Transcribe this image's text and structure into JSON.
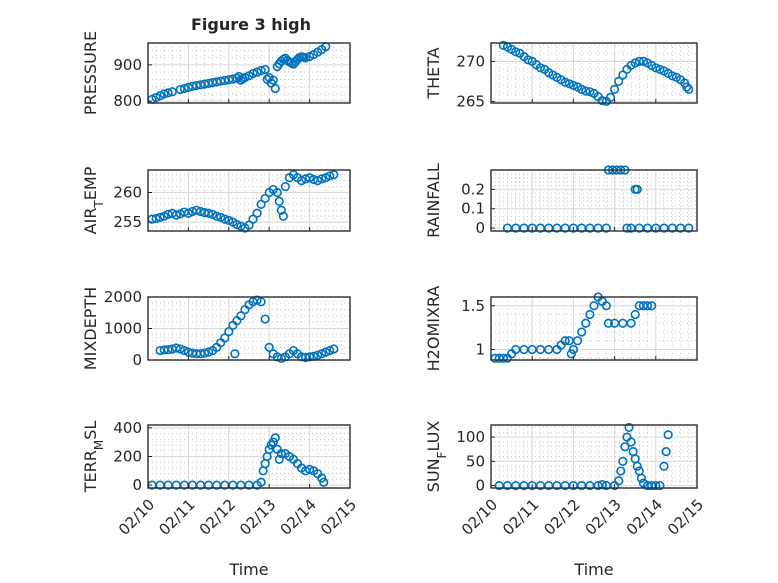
{
  "figure": {
    "title": "Figure 3 high",
    "marker_color": "#0072bd"
  },
  "chart_data": [
    {
      "type": "scatter",
      "ylabel": "PRESSURE",
      "xlim": [
        0,
        5
      ],
      "ylim": [
        795,
        960
      ],
      "yticks": [
        800,
        900
      ],
      "xtick_labels": [],
      "grid": true,
      "points": [
        [
          0.1,
          805
        ],
        [
          0.2,
          810
        ],
        [
          0.3,
          815
        ],
        [
          0.4,
          820
        ],
        [
          0.5,
          823
        ],
        [
          0.6,
          826
        ],
        [
          0.8,
          832
        ],
        [
          0.9,
          835
        ],
        [
          1.0,
          838
        ],
        [
          1.1,
          841
        ],
        [
          1.2,
          843
        ],
        [
          1.3,
          845
        ],
        [
          1.4,
          847
        ],
        [
          1.5,
          849
        ],
        [
          1.6,
          851
        ],
        [
          1.7,
          853
        ],
        [
          1.8,
          855
        ],
        [
          1.9,
          857
        ],
        [
          2.0,
          859
        ],
        [
          2.1,
          861
        ],
        [
          2.2,
          863
        ],
        [
          2.25,
          868
        ],
        [
          2.3,
          858
        ],
        [
          2.35,
          862
        ],
        [
          2.4,
          865
        ],
        [
          2.5,
          870
        ],
        [
          2.6,
          876
        ],
        [
          2.7,
          880
        ],
        [
          2.8,
          884
        ],
        [
          2.9,
          887
        ],
        [
          2.95,
          860
        ],
        [
          3.0,
          865
        ],
        [
          3.05,
          850
        ],
        [
          3.1,
          858
        ],
        [
          3.15,
          835
        ],
        [
          3.2,
          895
        ],
        [
          3.25,
          903
        ],
        [
          3.3,
          910
        ],
        [
          3.35,
          915
        ],
        [
          3.4,
          918
        ],
        [
          3.45,
          912
        ],
        [
          3.5,
          908
        ],
        [
          3.55,
          905
        ],
        [
          3.6,
          902
        ],
        [
          3.65,
          908
        ],
        [
          3.7,
          915
        ],
        [
          3.75,
          920
        ],
        [
          3.8,
          922
        ],
        [
          3.85,
          921
        ],
        [
          3.9,
          919
        ],
        [
          4.0,
          923
        ],
        [
          4.1,
          928
        ],
        [
          4.2,
          935
        ],
        [
          4.3,
          942
        ],
        [
          4.4,
          950
        ]
      ]
    },
    {
      "type": "scatter",
      "ylabel": "THETA",
      "xlim": [
        0,
        5
      ],
      "ylim": [
        264.8,
        272.3
      ],
      "yticks": [
        265,
        270
      ],
      "xtick_labels": [],
      "grid": true,
      "points": [
        [
          0.3,
          272
        ],
        [
          0.4,
          271.8
        ],
        [
          0.5,
          271.5
        ],
        [
          0.6,
          271.2
        ],
        [
          0.7,
          271
        ],
        [
          0.8,
          270.6
        ],
        [
          0.9,
          270.2
        ],
        [
          1.0,
          270
        ],
        [
          1.1,
          269.6
        ],
        [
          1.2,
          269.2
        ],
        [
          1.3,
          269
        ],
        [
          1.4,
          268.6
        ],
        [
          1.5,
          268.3
        ],
        [
          1.6,
          268
        ],
        [
          1.7,
          267.7
        ],
        [
          1.8,
          267.4
        ],
        [
          1.9,
          267.2
        ],
        [
          2.0,
          267
        ],
        [
          2.1,
          266.8
        ],
        [
          2.2,
          266.5
        ],
        [
          2.3,
          266.3
        ],
        [
          2.4,
          266.2
        ],
        [
          2.5,
          266
        ],
        [
          2.6,
          265.6
        ],
        [
          2.7,
          265.1
        ],
        [
          2.8,
          265
        ],
        [
          2.9,
          265.5
        ],
        [
          3.0,
          266.5
        ],
        [
          3.1,
          267.5
        ],
        [
          3.2,
          268.3
        ],
        [
          3.3,
          269
        ],
        [
          3.4,
          269.5
        ],
        [
          3.5,
          269.8
        ],
        [
          3.6,
          270
        ],
        [
          3.7,
          270
        ],
        [
          3.8,
          269.8
        ],
        [
          3.9,
          269.5
        ],
        [
          4.0,
          269.2
        ],
        [
          4.1,
          269
        ],
        [
          4.2,
          268.8
        ],
        [
          4.3,
          268.5
        ],
        [
          4.4,
          268.2
        ],
        [
          4.5,
          268
        ],
        [
          4.6,
          267.7
        ],
        [
          4.7,
          267.3
        ],
        [
          4.75,
          266.8
        ],
        [
          4.8,
          266.5
        ]
      ]
    },
    {
      "type": "scatter",
      "ylabel": "AIR_TEMP",
      "xlim": [
        0,
        5
      ],
      "ylim": [
        253.5,
        263.8
      ],
      "yticks": [
        255,
        260
      ],
      "xtick_labels": [],
      "grid": true,
      "points": [
        [
          0.1,
          255.5
        ],
        [
          0.2,
          255.6
        ],
        [
          0.3,
          255.8
        ],
        [
          0.4,
          256
        ],
        [
          0.5,
          256.3
        ],
        [
          0.6,
          256.5
        ],
        [
          0.7,
          256.2
        ],
        [
          0.8,
          256.4
        ],
        [
          0.9,
          256.7
        ],
        [
          1.0,
          256.5
        ],
        [
          1.1,
          256.8
        ],
        [
          1.2,
          257
        ],
        [
          1.3,
          256.8
        ],
        [
          1.4,
          256.6
        ],
        [
          1.5,
          256.5
        ],
        [
          1.6,
          256.3
        ],
        [
          1.7,
          256
        ],
        [
          1.8,
          255.8
        ],
        [
          1.9,
          255.5
        ],
        [
          2.0,
          255.3
        ],
        [
          2.1,
          255
        ],
        [
          2.2,
          254.6
        ],
        [
          2.3,
          254.3
        ],
        [
          2.4,
          254
        ],
        [
          2.5,
          254.5
        ],
        [
          2.6,
          255.5
        ],
        [
          2.7,
          256.5
        ],
        [
          2.8,
          258
        ],
        [
          2.9,
          259
        ],
        [
          3.0,
          260
        ],
        [
          3.1,
          260.5
        ],
        [
          3.2,
          260
        ],
        [
          3.25,
          258.5
        ],
        [
          3.3,
          257
        ],
        [
          3.35,
          256
        ],
        [
          3.4,
          261
        ],
        [
          3.5,
          262.5
        ],
        [
          3.6,
          263
        ],
        [
          3.7,
          262.5
        ],
        [
          3.8,
          262
        ],
        [
          3.9,
          262.3
        ],
        [
          4.0,
          262.5
        ],
        [
          4.1,
          262.2
        ],
        [
          4.2,
          262
        ],
        [
          4.3,
          262.3
        ],
        [
          4.4,
          262.5
        ],
        [
          4.5,
          262.8
        ],
        [
          4.6,
          263
        ]
      ]
    },
    {
      "type": "scatter",
      "ylabel": "RAINFALL",
      "xlim": [
        0,
        5
      ],
      "ylim": [
        -0.015,
        0.3
      ],
      "yticks": [
        0,
        0.1,
        0.2
      ],
      "xtick_labels": [],
      "grid": true,
      "points": [
        [
          0.4,
          0
        ],
        [
          0.6,
          0
        ],
        [
          0.8,
          0
        ],
        [
          1.0,
          0
        ],
        [
          1.2,
          0
        ],
        [
          1.4,
          0
        ],
        [
          1.6,
          0
        ],
        [
          1.8,
          0
        ],
        [
          2.0,
          0
        ],
        [
          2.2,
          0
        ],
        [
          2.4,
          0
        ],
        [
          2.6,
          0
        ],
        [
          2.8,
          0
        ],
        [
          2.85,
          0.3
        ],
        [
          2.95,
          0.3
        ],
        [
          3.05,
          0.3
        ],
        [
          3.15,
          0.3
        ],
        [
          3.25,
          0.3
        ],
        [
          3.3,
          0
        ],
        [
          3.4,
          0
        ],
        [
          3.5,
          0.2
        ],
        [
          3.55,
          0.2
        ],
        [
          3.6,
          0
        ],
        [
          3.8,
          0
        ],
        [
          4.0,
          0
        ],
        [
          4.2,
          0
        ],
        [
          4.4,
          0
        ],
        [
          4.6,
          0
        ],
        [
          4.8,
          0
        ]
      ]
    },
    {
      "type": "scatter",
      "ylabel": "MIXDEPTH",
      "xlim": [
        0,
        5
      ],
      "ylim": [
        0,
        2000
      ],
      "yticks": [
        0,
        1000,
        2000
      ],
      "xtick_labels": [],
      "grid": true,
      "points": [
        [
          0.3,
          300
        ],
        [
          0.4,
          320
        ],
        [
          0.5,
          330
        ],
        [
          0.6,
          350
        ],
        [
          0.7,
          380
        ],
        [
          0.8,
          350
        ],
        [
          0.9,
          300
        ],
        [
          1.0,
          250
        ],
        [
          1.1,
          220
        ],
        [
          1.2,
          200
        ],
        [
          1.3,
          200
        ],
        [
          1.4,
          220
        ],
        [
          1.5,
          250
        ],
        [
          1.6,
          300
        ],
        [
          1.7,
          400
        ],
        [
          1.8,
          550
        ],
        [
          1.9,
          700
        ],
        [
          2.0,
          900
        ],
        [
          2.1,
          1100
        ],
        [
          2.15,
          200
        ],
        [
          2.2,
          1250
        ],
        [
          2.3,
          1400
        ],
        [
          2.4,
          1600
        ],
        [
          2.5,
          1750
        ],
        [
          2.6,
          1850
        ],
        [
          2.7,
          1900
        ],
        [
          2.8,
          1850
        ],
        [
          2.9,
          1300
        ],
        [
          3.0,
          400
        ],
        [
          3.1,
          200
        ],
        [
          3.2,
          100
        ],
        [
          3.3,
          50
        ],
        [
          3.4,
          100
        ],
        [
          3.5,
          200
        ],
        [
          3.6,
          300
        ],
        [
          3.7,
          200
        ],
        [
          3.8,
          100
        ],
        [
          3.9,
          80
        ],
        [
          4.0,
          100
        ],
        [
          4.1,
          120
        ],
        [
          4.2,
          150
        ],
        [
          4.3,
          200
        ],
        [
          4.4,
          250
        ],
        [
          4.5,
          300
        ],
        [
          4.6,
          350
        ]
      ]
    },
    {
      "type": "scatter",
      "ylabel": "H2OMIXRA",
      "xlim": [
        0,
        5
      ],
      "ylim": [
        0.88,
        1.6
      ],
      "yticks": [
        1,
        1.5
      ],
      "xtick_labels": [],
      "grid": true,
      "points": [
        [
          0.1,
          0.9
        ],
        [
          0.2,
          0.9
        ],
        [
          0.3,
          0.9
        ],
        [
          0.4,
          0.9
        ],
        [
          0.5,
          0.95
        ],
        [
          0.6,
          1.0
        ],
        [
          0.8,
          1.0
        ],
        [
          1.0,
          1.0
        ],
        [
          1.2,
          1.0
        ],
        [
          1.4,
          1.0
        ],
        [
          1.6,
          1.0
        ],
        [
          1.7,
          1.05
        ],
        [
          1.8,
          1.1
        ],
        [
          1.9,
          1.1
        ],
        [
          1.95,
          0.95
        ],
        [
          2.0,
          1.0
        ],
        [
          2.1,
          1.1
        ],
        [
          2.2,
          1.2
        ],
        [
          2.3,
          1.3
        ],
        [
          2.4,
          1.4
        ],
        [
          2.5,
          1.5
        ],
        [
          2.6,
          1.6
        ],
        [
          2.7,
          1.55
        ],
        [
          2.8,
          1.5
        ],
        [
          2.85,
          1.3
        ],
        [
          3.0,
          1.3
        ],
        [
          3.2,
          1.3
        ],
        [
          3.4,
          1.3
        ],
        [
          3.5,
          1.4
        ],
        [
          3.6,
          1.5
        ],
        [
          3.7,
          1.5
        ],
        [
          3.8,
          1.5
        ],
        [
          3.9,
          1.5
        ]
      ]
    },
    {
      "type": "scatter",
      "ylabel": "TERR_MSL",
      "xlim": [
        0,
        5
      ],
      "ylim": [
        -20,
        420
      ],
      "yticks": [
        0,
        200,
        400
      ],
      "xtick_labels": [
        "02/10",
        "02/11",
        "02/12",
        "02/13",
        "02/14",
        "02/15"
      ],
      "xlabel": "Time",
      "grid": true,
      "points": [
        [
          0.1,
          0
        ],
        [
          0.3,
          0
        ],
        [
          0.5,
          0
        ],
        [
          0.7,
          0
        ],
        [
          0.9,
          0
        ],
        [
          1.1,
          0
        ],
        [
          1.3,
          0
        ],
        [
          1.5,
          0
        ],
        [
          1.7,
          0
        ],
        [
          1.9,
          0
        ],
        [
          2.1,
          0
        ],
        [
          2.3,
          0
        ],
        [
          2.5,
          0
        ],
        [
          2.7,
          0
        ],
        [
          2.8,
          20
        ],
        [
          2.85,
          100
        ],
        [
          2.9,
          150
        ],
        [
          2.95,
          200
        ],
        [
          3.0,
          250
        ],
        [
          3.05,
          280
        ],
        [
          3.1,
          300
        ],
        [
          3.15,
          330
        ],
        [
          3.2,
          250
        ],
        [
          3.25,
          180
        ],
        [
          3.3,
          220
        ],
        [
          3.4,
          220
        ],
        [
          3.5,
          200
        ],
        [
          3.6,
          180
        ],
        [
          3.7,
          150
        ],
        [
          3.8,
          120
        ],
        [
          3.9,
          100
        ],
        [
          4.0,
          110
        ],
        [
          4.1,
          100
        ],
        [
          4.2,
          80
        ],
        [
          4.3,
          50
        ],
        [
          4.35,
          20
        ]
      ]
    },
    {
      "type": "scatter",
      "ylabel": "SUN_FLUX",
      "xlim": [
        0,
        5
      ],
      "ylim": [
        -5,
        125
      ],
      "yticks": [
        0,
        50,
        100
      ],
      "xtick_labels": [
        "02/10",
        "02/11",
        "02/12",
        "02/13",
        "02/14",
        "02/15"
      ],
      "xlabel": "Time",
      "grid": true,
      "points": [
        [
          0.2,
          0
        ],
        [
          0.4,
          0
        ],
        [
          0.6,
          0
        ],
        [
          0.8,
          0
        ],
        [
          1.0,
          0
        ],
        [
          1.2,
          0
        ],
        [
          1.4,
          0
        ],
        [
          1.6,
          0
        ],
        [
          1.8,
          0
        ],
        [
          2.0,
          0
        ],
        [
          2.2,
          0
        ],
        [
          2.4,
          0
        ],
        [
          2.6,
          0
        ],
        [
          2.7,
          2
        ],
        [
          2.8,
          0
        ],
        [
          3.0,
          0
        ],
        [
          3.1,
          10
        ],
        [
          3.15,
          30
        ],
        [
          3.2,
          50
        ],
        [
          3.25,
          80
        ],
        [
          3.3,
          100
        ],
        [
          3.35,
          120
        ],
        [
          3.4,
          90
        ],
        [
          3.45,
          70
        ],
        [
          3.5,
          55
        ],
        [
          3.55,
          40
        ],
        [
          3.6,
          30
        ],
        [
          3.65,
          15
        ],
        [
          3.7,
          5
        ],
        [
          3.8,
          0
        ],
        [
          3.9,
          0
        ],
        [
          4.0,
          0
        ],
        [
          4.1,
          0
        ],
        [
          4.2,
          40
        ],
        [
          4.25,
          70
        ],
        [
          4.3,
          105
        ]
      ]
    }
  ]
}
